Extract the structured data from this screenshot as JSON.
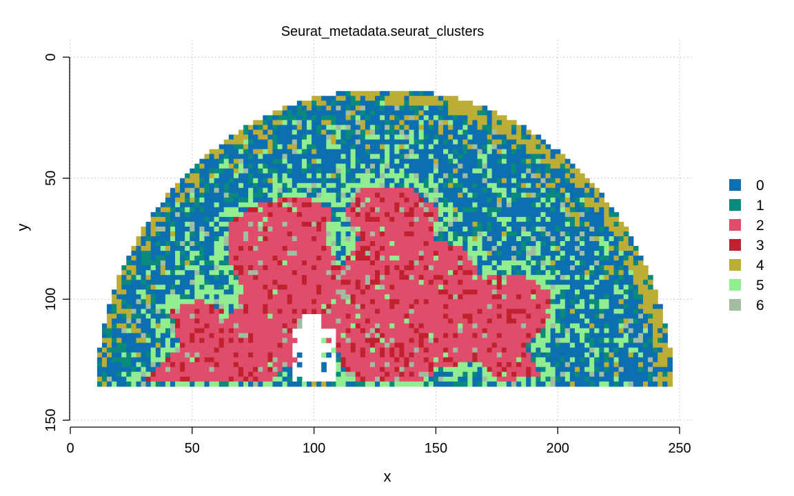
{
  "chart_data": {
    "type": "heatmap",
    "title": "Seurat_metadata.seurat_clusters",
    "xlabel": "x",
    "ylabel": "y",
    "xlim": [
      0,
      255
    ],
    "ylim": [
      0,
      150
    ],
    "y_reversed": true,
    "x_ticks": [
      0,
      50,
      100,
      150,
      200,
      250
    ],
    "y_ticks": [
      0,
      50,
      100,
      150
    ],
    "grid": true,
    "legend_position": "right",
    "legend": [
      {
        "label": "0",
        "color": "#0d6fb0"
      },
      {
        "label": "1",
        "color": "#0a8a7c"
      },
      {
        "label": "2",
        "color": "#df4d6b"
      },
      {
        "label": "3",
        "color": "#c1212f"
      },
      {
        "label": "4",
        "color": "#bcad37"
      },
      {
        "label": "5",
        "color": "#90ee90"
      },
      {
        "label": "6",
        "color": "#a2bca2"
      }
    ],
    "tissue_extent": {
      "x_range": [
        9,
        247
      ],
      "y_bottom": 134,
      "arc_center": [
        128,
        142
      ],
      "arc_radius": [
        119,
        130
      ]
    },
    "cortex_region": [
      [
        30,
        132
      ],
      [
        44,
        118
      ],
      [
        40,
        104
      ],
      [
        52,
        99
      ],
      [
        66,
        106
      ],
      [
        70,
        95
      ],
      [
        64,
        82
      ],
      [
        64,
        68
      ],
      [
        76,
        60
      ],
      [
        94,
        56
      ],
      [
        106,
        62
      ],
      [
        104,
        74
      ],
      [
        110,
        86
      ],
      [
        118,
        74
      ],
      [
        112,
        62
      ],
      [
        120,
        52
      ],
      [
        140,
        54
      ],
      [
        150,
        62
      ],
      [
        148,
        74
      ],
      [
        160,
        78
      ],
      [
        168,
        90
      ],
      [
        184,
        88
      ],
      [
        196,
        96
      ],
      [
        196,
        108
      ],
      [
        186,
        118
      ],
      [
        192,
        130
      ],
      [
        176,
        133
      ],
      [
        166,
        124
      ],
      [
        150,
        128
      ],
      [
        142,
        134
      ],
      [
        120,
        134
      ],
      [
        112,
        130
      ],
      [
        108,
        118
      ],
      [
        96,
        112
      ],
      [
        92,
        124
      ],
      [
        80,
        133
      ],
      [
        56,
        134
      ]
    ]
  }
}
